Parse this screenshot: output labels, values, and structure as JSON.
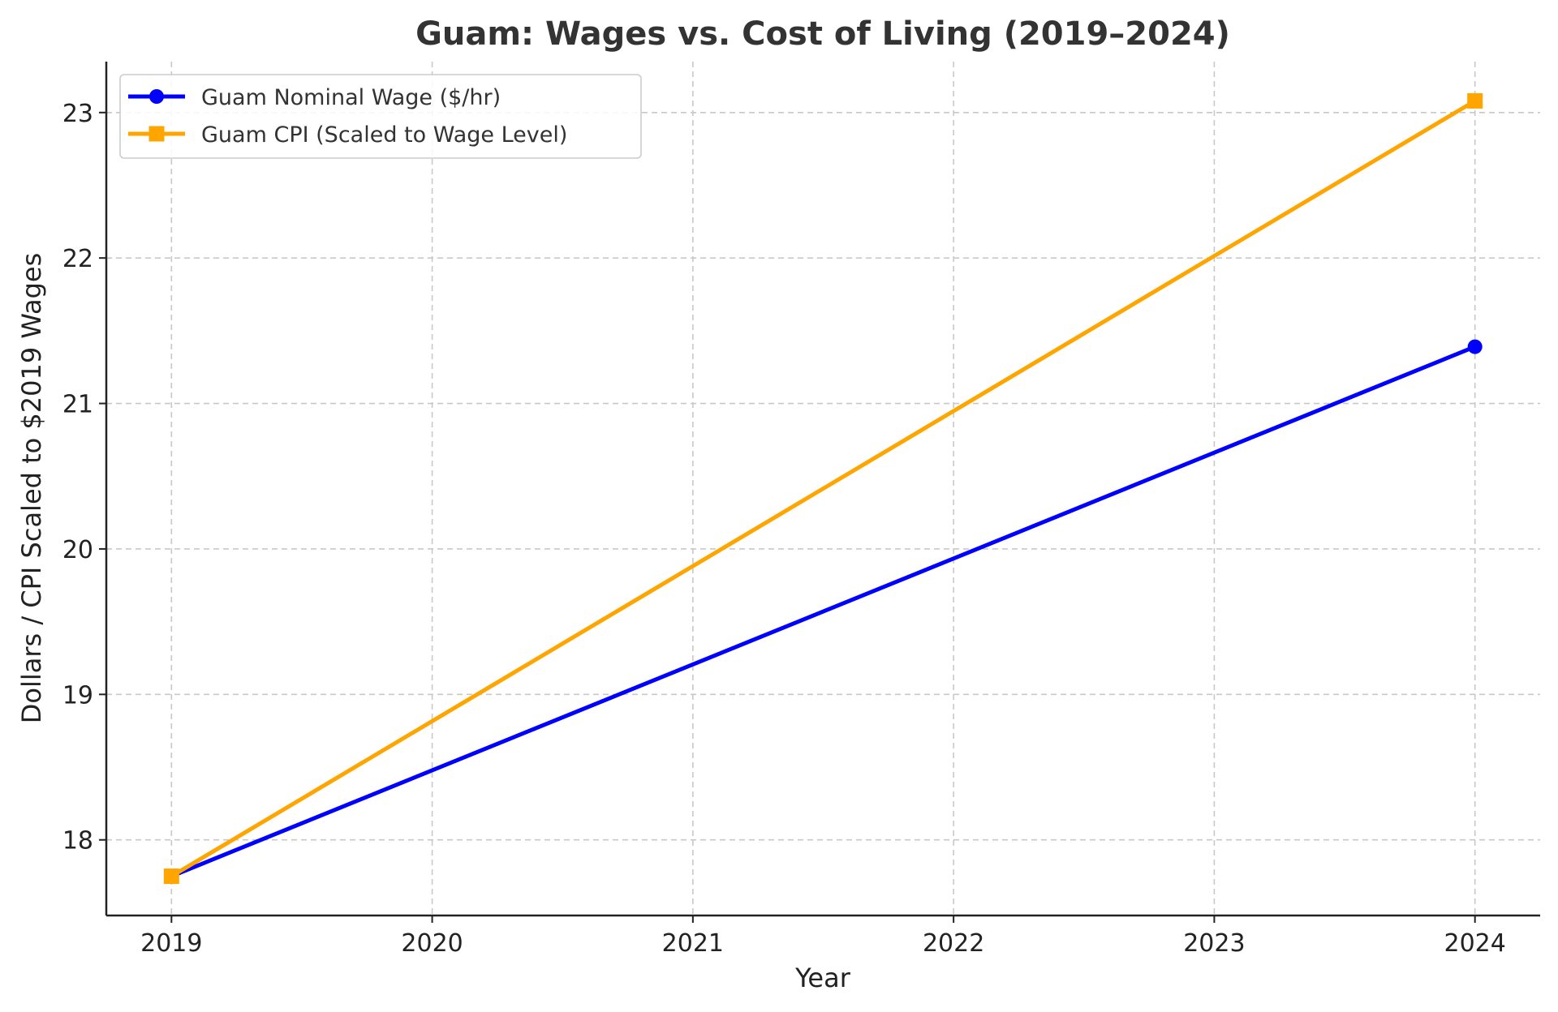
{
  "chart_data": {
    "type": "line",
    "title": "Guam: Wages vs. Cost of Living (2019–2024)",
    "xlabel": "Year",
    "ylabel": "Dollars / CPI Scaled to $2019 Wages",
    "xlim": [
      2018.75,
      2024.25
    ],
    "ylim": [
      17.48,
      23.35
    ],
    "xticks": [
      "2019",
      "2020",
      "2021",
      "2022",
      "2023",
      "2024"
    ],
    "yticks": [
      "18",
      "19",
      "20",
      "21",
      "22",
      "23"
    ],
    "grid": true,
    "legend_position": "top-left",
    "series": [
      {
        "name": "Guam Nominal Wage ($/hr)",
        "color": "#0000ff",
        "marker": "circle",
        "x": [
          2019,
          2024
        ],
        "y": [
          17.75,
          21.39
        ]
      },
      {
        "name": "Guam CPI (Scaled to Wage Level)",
        "color": "#ffa500",
        "marker": "square",
        "x": [
          2019,
          2024
        ],
        "y": [
          17.75,
          23.08
        ]
      }
    ]
  }
}
